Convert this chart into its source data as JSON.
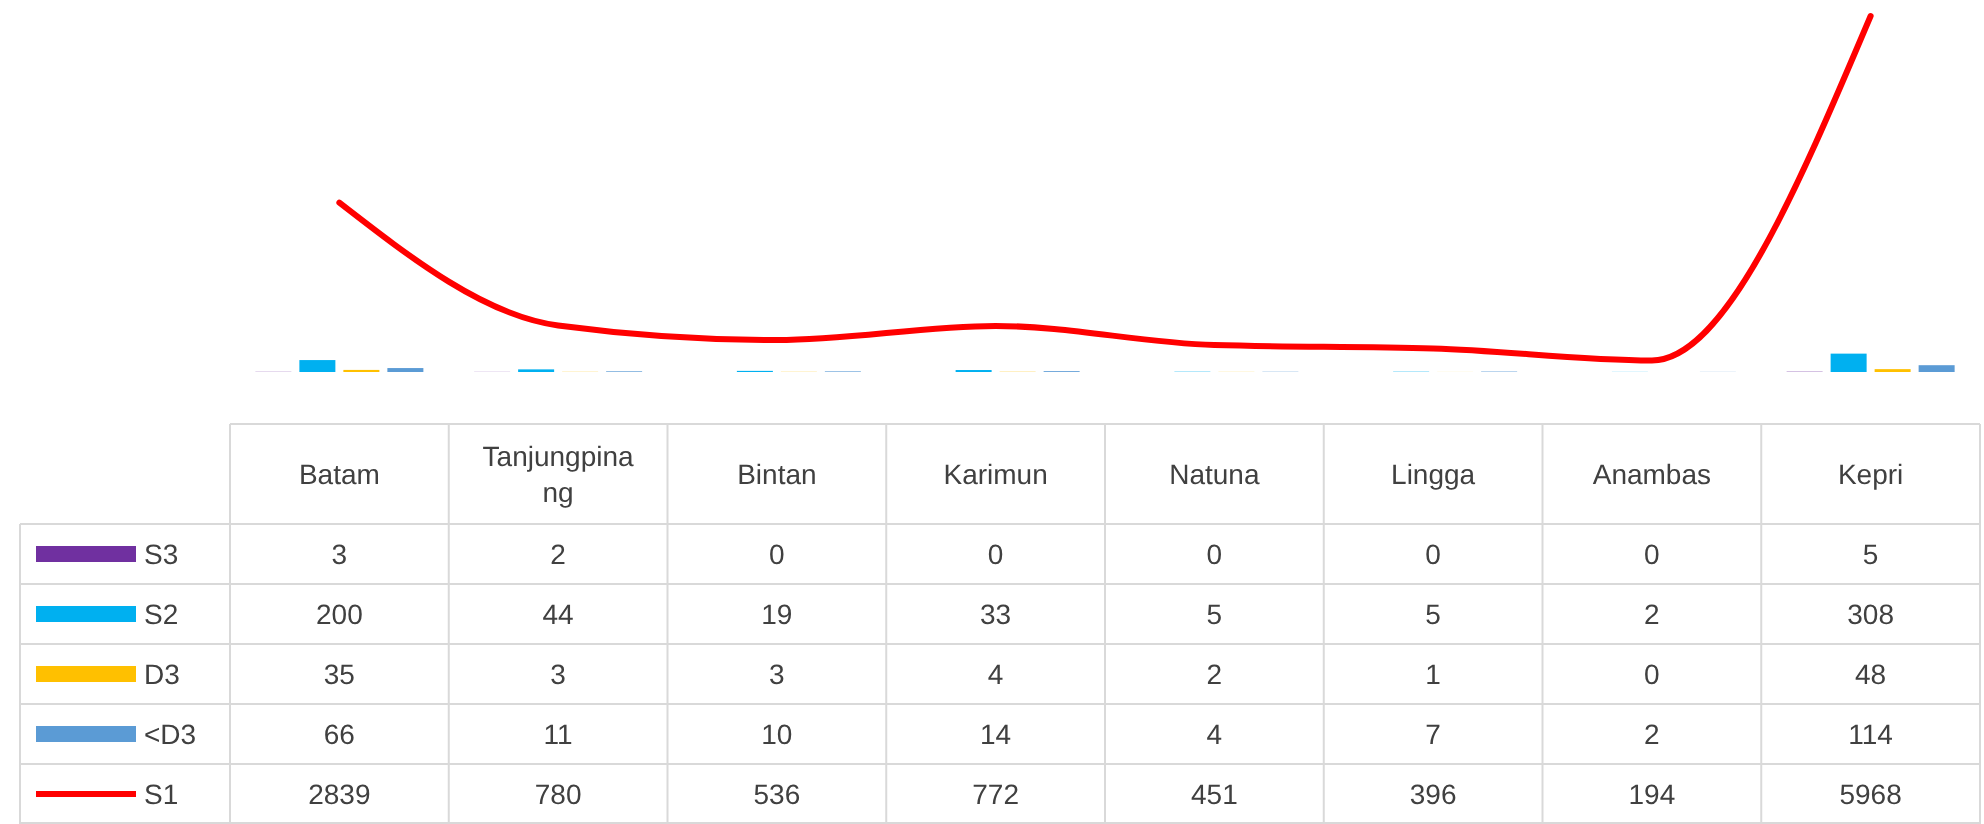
{
  "chart_data": {
    "type": "bar",
    "categories": [
      "Batam",
      "Tanjungpinang",
      "Bintan",
      "Karimun",
      "Natuna",
      "Lingga",
      "Anambas",
      "Kepri"
    ],
    "series": [
      {
        "name": "S3",
        "color": "#7030a0",
        "values": [
          3,
          2,
          0,
          0,
          0,
          0,
          0,
          5
        ]
      },
      {
        "name": "S2",
        "color": "#00b0f0",
        "values": [
          200,
          44,
          19,
          33,
          5,
          5,
          2,
          308
        ]
      },
      {
        "name": "D3",
        "color": "#ffc000",
        "values": [
          35,
          3,
          3,
          4,
          2,
          1,
          0,
          48
        ]
      },
      {
        "name": "<D3",
        "color": "#5b9bd5",
        "values": [
          66,
          11,
          10,
          14,
          4,
          7,
          2,
          114
        ]
      },
      {
        "name": "S1",
        "type": "line",
        "color": "#ff0000",
        "values": [
          2839,
          780,
          536,
          772,
          451,
          396,
          194,
          5968
        ]
      }
    ],
    "data_labels": true,
    "legend": "bottom"
  }
}
